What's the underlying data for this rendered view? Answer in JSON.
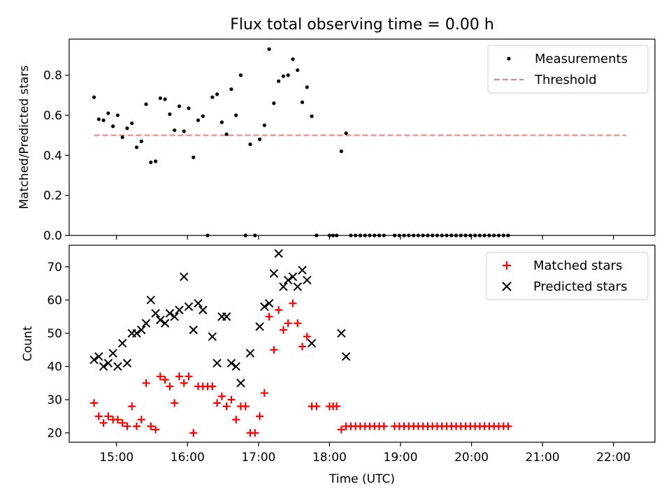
{
  "figure": {
    "title": "Flux total observing time = 0.00 h"
  },
  "chart_data": [
    {
      "type": "scatter",
      "title": "Flux total observing time = 0.00 h",
      "xlabel": "",
      "ylabel": "Matched/Predicted stars",
      "xlim": [
        "14:20",
        "22:35"
      ],
      "ylim": [
        0,
        0.98
      ],
      "yticks": [
        0.0,
        0.2,
        0.4,
        0.6,
        0.8
      ],
      "yticklabels": [
        "0.0",
        "0.2",
        "0.4",
        "0.6",
        "0.8"
      ],
      "legend_position": "upper right",
      "series": [
        {
          "name": "Measurements",
          "marker": "dot",
          "color": "#000000",
          "points": [
            [
              "14:41",
              0.69
            ],
            [
              "14:45",
              0.58
            ],
            [
              "14:49",
              0.575
            ],
            [
              "14:53",
              0.61
            ],
            [
              "14:57",
              0.545
            ],
            [
              "15:01",
              0.6
            ],
            [
              "15:05",
              0.49
            ],
            [
              "15:09",
              0.535
            ],
            [
              "15:13",
              0.56
            ],
            [
              "15:17",
              0.44
            ],
            [
              "15:21",
              0.47
            ],
            [
              "15:25",
              0.655
            ],
            [
              "15:29",
              0.365
            ],
            [
              "15:33",
              0.37
            ],
            [
              "15:37",
              0.685
            ],
            [
              "15:41",
              0.68
            ],
            [
              "15:45",
              0.605
            ],
            [
              "15:49",
              0.525
            ],
            [
              "15:53",
              0.645
            ],
            [
              "15:57",
              0.52
            ],
            [
              "16:01",
              0.635
            ],
            [
              "16:05",
              0.39
            ],
            [
              "16:09",
              0.575
            ],
            [
              "16:13",
              0.595
            ],
            [
              "16:17",
              0.0
            ],
            [
              "16:21",
              0.69
            ],
            [
              "16:25",
              0.705
            ],
            [
              "16:29",
              0.565
            ],
            [
              "16:33",
              0.505
            ],
            [
              "16:37",
              0.73
            ],
            [
              "16:41",
              0.6
            ],
            [
              "16:45",
              0.8
            ],
            [
              "16:49",
              0.0
            ],
            [
              "16:53",
              0.455
            ],
            [
              "16:57",
              0.0
            ],
            [
              "17:01",
              0.48
            ],
            [
              "17:05",
              0.55
            ],
            [
              "17:09",
              0.93
            ],
            [
              "17:13",
              0.66
            ],
            [
              "17:17",
              0.77
            ],
            [
              "17:21",
              0.795
            ],
            [
              "17:25",
              0.8
            ],
            [
              "17:29",
              0.88
            ],
            [
              "17:33",
              0.825
            ],
            [
              "17:37",
              0.665
            ],
            [
              "17:41",
              0.74
            ],
            [
              "17:45",
              0.595
            ],
            [
              "17:49",
              0.0
            ],
            [
              "18:00",
              0.0
            ],
            [
              "18:03",
              0.0
            ],
            [
              "18:06",
              0.0
            ],
            [
              "18:10",
              0.42
            ],
            [
              "18:14",
              0.51
            ],
            [
              "18:18",
              0.0
            ],
            [
              "18:22",
              0.0
            ],
            [
              "18:26",
              0.0
            ],
            [
              "18:30",
              0.0
            ],
            [
              "18:34",
              0.0
            ],
            [
              "18:38",
              0.0
            ],
            [
              "18:42",
              0.0
            ],
            [
              "18:46",
              0.0
            ],
            [
              "18:55",
              0.0
            ],
            [
              "18:59",
              0.0
            ],
            [
              "19:03",
              0.0
            ],
            [
              "19:07",
              0.0
            ],
            [
              "19:11",
              0.0
            ],
            [
              "19:15",
              0.0
            ],
            [
              "19:19",
              0.0
            ],
            [
              "19:23",
              0.0
            ],
            [
              "19:27",
              0.0
            ],
            [
              "19:31",
              0.0
            ],
            [
              "19:35",
              0.0
            ],
            [
              "19:39",
              0.0
            ],
            [
              "19:43",
              0.0
            ],
            [
              "19:47",
              0.0
            ],
            [
              "19:51",
              0.0
            ],
            [
              "19:55",
              0.0
            ],
            [
              "19:59",
              0.0
            ],
            [
              "20:03",
              0.0
            ],
            [
              "20:07",
              0.0
            ],
            [
              "20:11",
              0.0
            ],
            [
              "20:15",
              0.0
            ],
            [
              "20:19",
              0.0
            ],
            [
              "20:23",
              0.0
            ],
            [
              "20:27",
              0.0
            ],
            [
              "20:31",
              0.0
            ]
          ]
        },
        {
          "name": "Threshold",
          "marker": "dashed-line",
          "color": "#f08080",
          "points": [
            [
              "14:41",
              0.5
            ],
            [
              "22:11",
              0.5
            ]
          ]
        }
      ]
    },
    {
      "type": "scatter",
      "xlabel": "Time (UTC)",
      "ylabel": "Count",
      "xlim": [
        "14:20",
        "22:35"
      ],
      "ylim": [
        17.2,
        76.5
      ],
      "xticks": [
        "15:00",
        "16:00",
        "17:00",
        "18:00",
        "19:00",
        "20:00",
        "21:00",
        "22:00"
      ],
      "yticks": [
        20,
        30,
        40,
        50,
        60,
        70
      ],
      "yticklabels": [
        "20",
        "30",
        "40",
        "50",
        "60",
        "70"
      ],
      "legend_position": "upper right",
      "series": [
        {
          "name": "Matched stars",
          "marker": "plus",
          "color": "#ff0000",
          "points": [
            [
              "14:41",
              29
            ],
            [
              "14:45",
              25
            ],
            [
              "14:49",
              23
            ],
            [
              "14:53",
              25
            ],
            [
              "14:57",
              24
            ],
            [
              "15:01",
              24
            ],
            [
              "15:05",
              23
            ],
            [
              "15:09",
              22
            ],
            [
              "15:13",
              28
            ],
            [
              "15:17",
              22
            ],
            [
              "15:21",
              24
            ],
            [
              "15:25",
              35
            ],
            [
              "15:29",
              22
            ],
            [
              "15:33",
              21
            ],
            [
              "15:37",
              37
            ],
            [
              "15:41",
              36
            ],
            [
              "15:45",
              34
            ],
            [
              "15:49",
              29
            ],
            [
              "15:53",
              37
            ],
            [
              "15:57",
              35
            ],
            [
              "16:01",
              37
            ],
            [
              "16:05",
              20
            ],
            [
              "16:09",
              34
            ],
            [
              "16:13",
              34
            ],
            [
              "16:17",
              34
            ],
            [
              "16:21",
              34
            ],
            [
              "16:25",
              29
            ],
            [
              "16:29",
              31
            ],
            [
              "16:33",
              28
            ],
            [
              "16:37",
              30
            ],
            [
              "16:41",
              24
            ],
            [
              "16:45",
              28
            ],
            [
              "16:49",
              28
            ],
            [
              "16:53",
              20
            ],
            [
              "16:57",
              20
            ],
            [
              "17:01",
              25
            ],
            [
              "17:05",
              32
            ],
            [
              "17:09",
              55
            ],
            [
              "17:13",
              45
            ],
            [
              "17:17",
              57
            ],
            [
              "17:21",
              51
            ],
            [
              "17:25",
              53
            ],
            [
              "17:29",
              59
            ],
            [
              "17:33",
              53
            ],
            [
              "17:37",
              46
            ],
            [
              "17:41",
              49
            ],
            [
              "17:45",
              28
            ],
            [
              "17:49",
              28
            ],
            [
              "18:00",
              28
            ],
            [
              "18:03",
              28
            ],
            [
              "18:06",
              28
            ],
            [
              "18:10",
              21
            ],
            [
              "18:14",
              22
            ],
            [
              "18:18",
              22
            ],
            [
              "18:22",
              22
            ],
            [
              "18:26",
              22
            ],
            [
              "18:30",
              22
            ],
            [
              "18:34",
              22
            ],
            [
              "18:38",
              22
            ],
            [
              "18:42",
              22
            ],
            [
              "18:46",
              22
            ],
            [
              "18:55",
              22
            ],
            [
              "18:59",
              22
            ],
            [
              "19:03",
              22
            ],
            [
              "19:07",
              22
            ],
            [
              "19:11",
              22
            ],
            [
              "19:15",
              22
            ],
            [
              "19:19",
              22
            ],
            [
              "19:23",
              22
            ],
            [
              "19:27",
              22
            ],
            [
              "19:31",
              22
            ],
            [
              "19:35",
              22
            ],
            [
              "19:39",
              22
            ],
            [
              "19:43",
              22
            ],
            [
              "19:47",
              22
            ],
            [
              "19:51",
              22
            ],
            [
              "19:55",
              22
            ],
            [
              "19:59",
              22
            ],
            [
              "20:03",
              22
            ],
            [
              "20:07",
              22
            ],
            [
              "20:11",
              22
            ],
            [
              "20:15",
              22
            ],
            [
              "20:19",
              22
            ],
            [
              "20:23",
              22
            ],
            [
              "20:27",
              22
            ],
            [
              "20:31",
              22
            ]
          ]
        },
        {
          "name": "Predicted stars",
          "marker": "x",
          "color": "#000000",
          "points": [
            [
              "14:41",
              42
            ],
            [
              "14:45",
              43
            ],
            [
              "14:49",
              40
            ],
            [
              "14:53",
              41
            ],
            [
              "14:57",
              44
            ],
            [
              "15:01",
              40
            ],
            [
              "15:05",
              47
            ],
            [
              "15:09",
              41
            ],
            [
              "15:13",
              50
            ],
            [
              "15:17",
              50
            ],
            [
              "15:21",
              51
            ],
            [
              "15:25",
              53
            ],
            [
              "15:29",
              60
            ],
            [
              "15:33",
              56
            ],
            [
              "15:37",
              54
            ],
            [
              "15:41",
              53
            ],
            [
              "15:45",
              56
            ],
            [
              "15:49",
              55
            ],
            [
              "15:53",
              57
            ],
            [
              "15:57",
              67
            ],
            [
              "16:01",
              58
            ],
            [
              "16:05",
              51
            ],
            [
              "16:09",
              59
            ],
            [
              "16:13",
              57
            ],
            [
              "16:21",
              49
            ],
            [
              "16:25",
              41
            ],
            [
              "16:29",
              55
            ],
            [
              "16:33",
              55
            ],
            [
              "16:37",
              41
            ],
            [
              "16:41",
              40
            ],
            [
              "16:45",
              35
            ],
            [
              "16:53",
              44
            ],
            [
              "17:01",
              52
            ],
            [
              "17:05",
              58
            ],
            [
              "17:09",
              59
            ],
            [
              "17:13",
              68
            ],
            [
              "17:17",
              74
            ],
            [
              "17:21",
              64
            ],
            [
              "17:25",
              66
            ],
            [
              "17:29",
              67
            ],
            [
              "17:33",
              64
            ],
            [
              "17:37",
              69
            ],
            [
              "17:41",
              66
            ],
            [
              "17:45",
              47
            ],
            [
              "18:10",
              50
            ],
            [
              "18:14",
              43
            ]
          ]
        }
      ]
    }
  ]
}
